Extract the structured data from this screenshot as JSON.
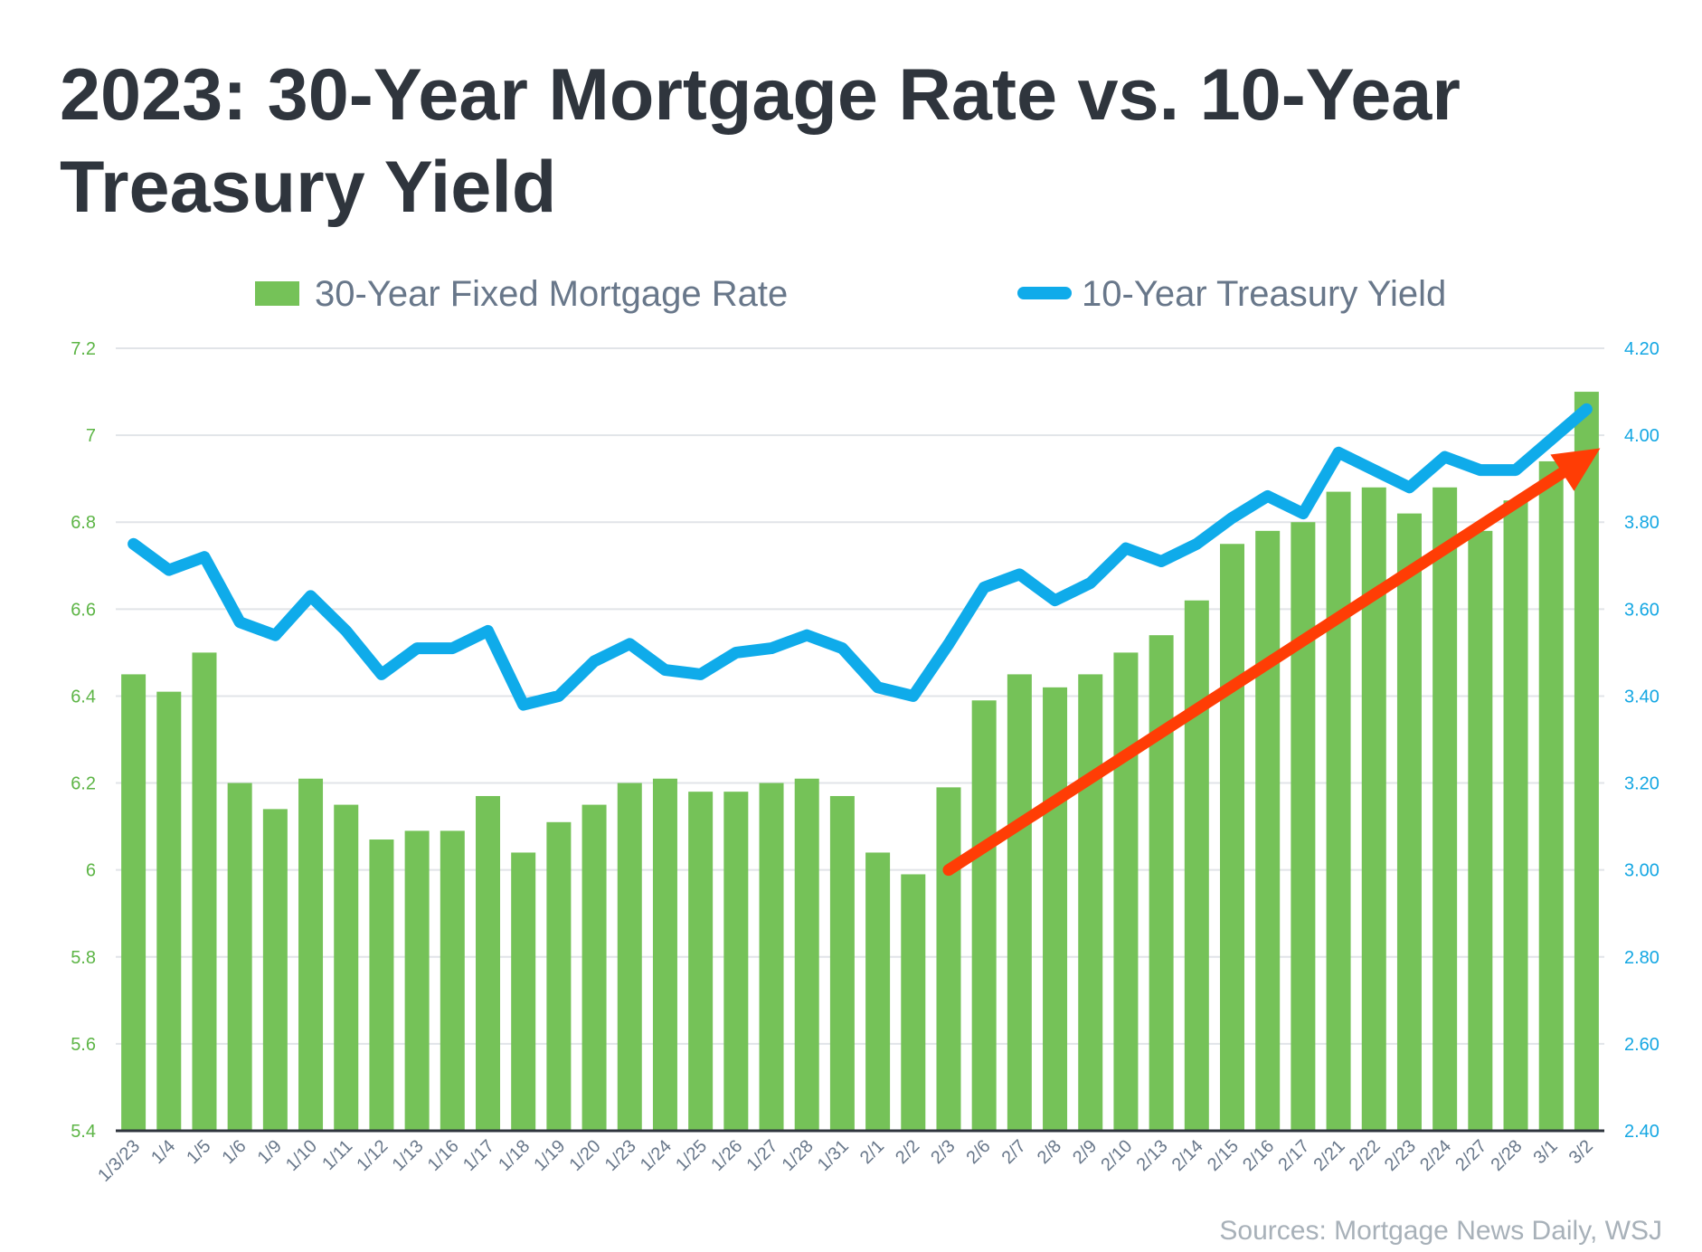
{
  "title": "2023: 30-Year Mortgage Rate vs. 10-Year Treasury Yield",
  "source": "Sources: Mortgage News Daily, WSJ",
  "colors": {
    "bar": "#75c258",
    "line": "#0fabea",
    "arrow": "#ff3d05",
    "title": "#2f353d",
    "legend_text": "#68778a",
    "left_axis": "#5db546",
    "right_axis": "#14a7e3",
    "grid": "#e1e4e8",
    "x_tick": "#68778a"
  },
  "chart_data": {
    "type": "bar",
    "categories": [
      "1/3/23",
      "1/4",
      "1/5",
      "1/6",
      "1/9",
      "1/10",
      "1/11",
      "1/12",
      "1/13",
      "1/16",
      "1/17",
      "1/18",
      "1/19",
      "1/20",
      "1/23",
      "1/24",
      "1/25",
      "1/26",
      "1/27",
      "1/28",
      "1/31",
      "2/1",
      "2/2",
      "2/3",
      "2/6",
      "2/7",
      "2/8",
      "2/9",
      "2/10",
      "2/13",
      "2/14",
      "2/15",
      "2/16",
      "2/17",
      "2/21",
      "2/22",
      "2/23",
      "2/24",
      "2/27",
      "2/28",
      "3/1",
      "3/2"
    ],
    "series": [
      {
        "name": "30-Year Fixed Mortgage Rate",
        "type": "bar",
        "axis": "left",
        "values": [
          6.45,
          6.41,
          6.5,
          6.2,
          6.14,
          6.21,
          6.15,
          6.07,
          6.09,
          6.09,
          6.17,
          6.04,
          6.11,
          6.15,
          6.2,
          6.21,
          6.18,
          6.18,
          6.2,
          6.21,
          6.17,
          6.04,
          5.99,
          6.19,
          6.39,
          6.45,
          6.42,
          6.45,
          6.5,
          6.54,
          6.62,
          6.75,
          6.78,
          6.8,
          6.87,
          6.88,
          6.82,
          6.88,
          6.78,
          6.85,
          6.94,
          7.1
        ]
      },
      {
        "name": "10-Year Treasury Yield",
        "type": "line",
        "axis": "right",
        "values": [
          3.75,
          3.69,
          3.72,
          3.57,
          3.54,
          3.63,
          3.55,
          3.45,
          3.51,
          3.51,
          3.55,
          3.38,
          3.4,
          3.48,
          3.52,
          3.46,
          3.45,
          3.5,
          3.51,
          3.54,
          3.51,
          3.42,
          3.4,
          3.52,
          3.65,
          3.68,
          3.62,
          3.66,
          3.74,
          3.71,
          3.75,
          3.81,
          3.86,
          3.82,
          3.96,
          3.92,
          3.88,
          3.95,
          3.92,
          3.92,
          3.99,
          4.06
        ]
      }
    ],
    "left_axis": {
      "ylim": [
        5.4,
        7.2
      ],
      "ticks": [
        "5.4",
        "5.6",
        "5.8",
        "6",
        "6.2",
        "6.4",
        "6.6",
        "6.8",
        "7",
        "7.2"
      ]
    },
    "right_axis": {
      "ylim": [
        2.4,
        4.2
      ],
      "ticks": [
        "2.40",
        "2.60",
        "2.80",
        "3.00",
        "3.20",
        "3.40",
        "3.60",
        "3.80",
        "4.00",
        "4.20"
      ]
    },
    "annotation": {
      "type": "arrow",
      "from": {
        "category": "2/3",
        "value_right": 3.0
      },
      "to": {
        "category": "3/2",
        "value_right": 3.97
      }
    },
    "legend_position": "top",
    "grid": true
  }
}
